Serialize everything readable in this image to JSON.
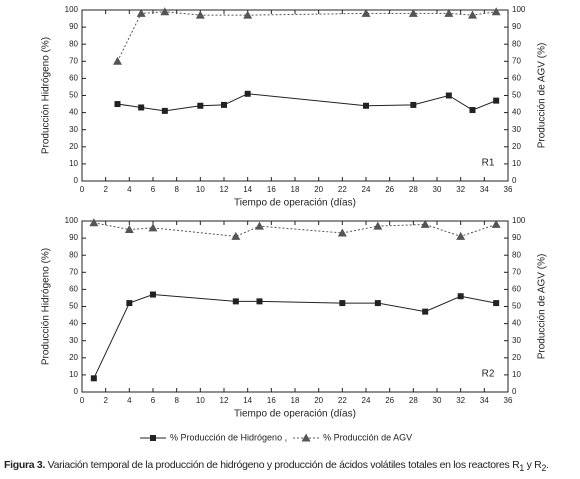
{
  "charts": [
    {
      "type": "line",
      "annotation": "R1",
      "xlabel": "Tiempo de operación (días)",
      "ylabel": "Producción Hidrógeno (%)",
      "y2label": "Producción de AGV (%)",
      "xlim": [
        0,
        36
      ],
      "xticks": [
        0,
        2,
        4,
        6,
        8,
        10,
        12,
        14,
        16,
        18,
        20,
        22,
        24,
        26,
        28,
        30,
        32,
        34,
        36
      ],
      "ylim": [
        0,
        100
      ],
      "yticks": [
        0,
        10,
        20,
        30,
        40,
        50,
        60,
        70,
        80,
        90,
        100
      ],
      "y2lim": [
        0,
        100
      ],
      "y2ticks": [
        0,
        10,
        20,
        30,
        40,
        50,
        60,
        70,
        80,
        90,
        100
      ],
      "series": [
        {
          "name": "% Producción de Hidrógeno ,",
          "color": "#222222",
          "marker": "square",
          "line_style": "solid",
          "x": [
            3,
            5,
            7,
            10,
            12,
            14,
            24,
            28,
            31,
            33,
            35
          ],
          "values": [
            45,
            43,
            41,
            44,
            44.5,
            51,
            44,
            44.5,
            50,
            41.5,
            47
          ]
        },
        {
          "name": "% Producción de AGV",
          "color": "#555555",
          "marker": "triangle",
          "line_style": "dashed",
          "axis": "y2",
          "x": [
            3,
            5,
            7,
            10,
            14,
            24,
            28,
            31,
            33,
            35
          ],
          "values": [
            70,
            98,
            99,
            97,
            97,
            98,
            98,
            98,
            97,
            99
          ]
        }
      ]
    },
    {
      "type": "line",
      "annotation": "R2",
      "xlabel": "Tiempo de operación (días)",
      "ylabel": "Producción Hidrógeno (%)",
      "y2label": "Producción de AGV (%)",
      "xlim": [
        0,
        36
      ],
      "xticks": [
        0,
        2,
        4,
        6,
        8,
        10,
        12,
        14,
        16,
        18,
        20,
        22,
        24,
        26,
        28,
        30,
        32,
        34,
        36
      ],
      "ylim": [
        0,
        100
      ],
      "yticks": [
        0,
        10,
        20,
        30,
        40,
        50,
        60,
        70,
        80,
        90,
        100
      ],
      "y2lim": [
        0,
        100
      ],
      "y2ticks": [
        0,
        10,
        20,
        30,
        40,
        50,
        60,
        70,
        80,
        90,
        100
      ],
      "series": [
        {
          "color": "#222222",
          "marker": "square",
          "line_style": "solid",
          "x": [
            1,
            4,
            6,
            13,
            15,
            22,
            25,
            29,
            32,
            35
          ],
          "values": [
            8,
            52,
            57,
            53,
            53,
            52,
            52,
            47,
            56,
            52
          ]
        },
        {
          "color": "#555555",
          "marker": "triangle",
          "line_style": "dashed",
          "axis": "y2",
          "x": [
            1,
            4,
            6,
            13,
            15,
            22,
            25,
            29,
            32,
            35
          ],
          "values": [
            99,
            95,
            96,
            91,
            97,
            93,
            97,
            98,
            91,
            98
          ]
        }
      ]
    }
  ],
  "caption": {
    "label": "Figura 3.",
    "text": " Variación temporal de la producción de hidrógeno y producción de ácidos volátiles totales en los reactores R",
    "sub1": "1",
    "mid": " y R",
    "sub2": "2",
    "end": "."
  }
}
